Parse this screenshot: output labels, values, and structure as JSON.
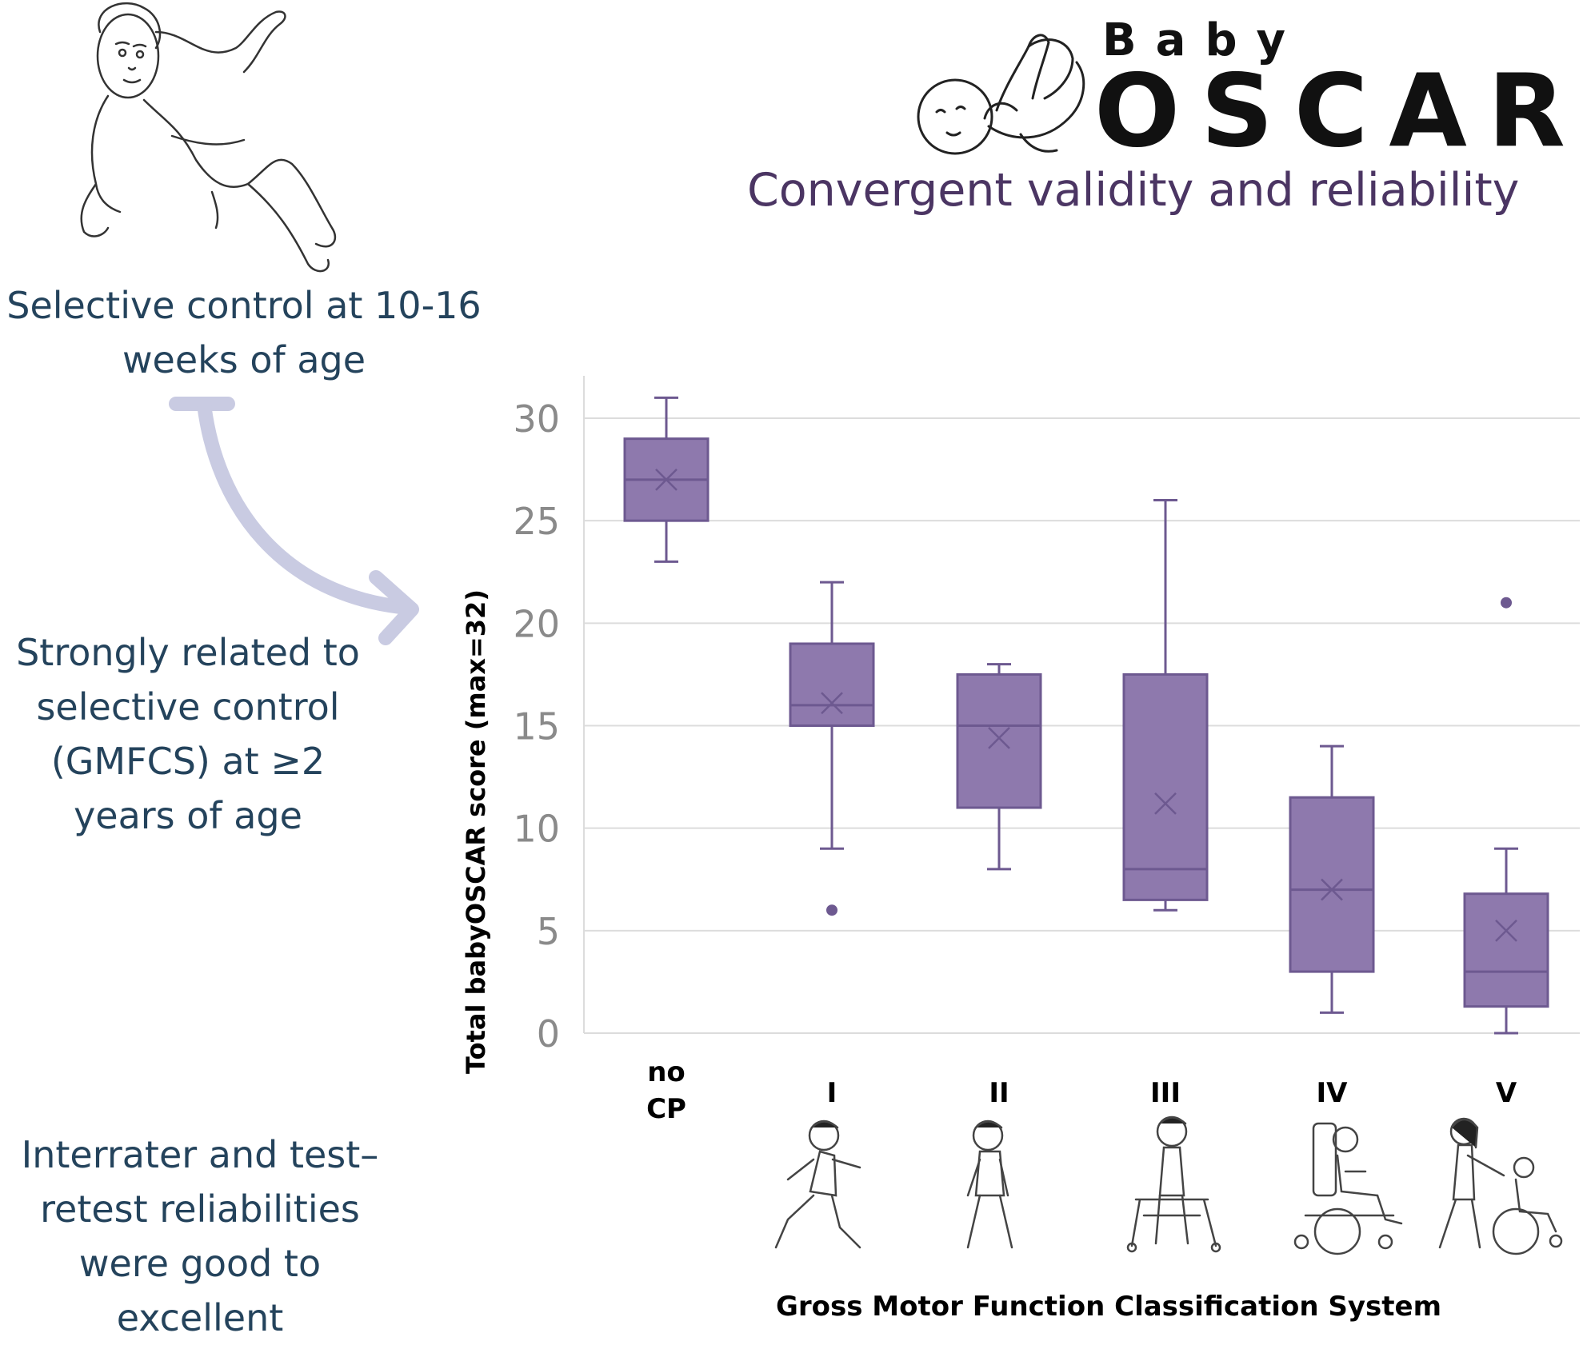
{
  "branding": {
    "logo_small": "Baby",
    "logo_big": "OSCAR",
    "subtitle": "Convergent validity and reliability"
  },
  "side_notes": {
    "top": "Selective control at 10-16\nweeks of age",
    "middle": "Strongly related to\nselective control\n(GMFCS) at ≥2\nyears of age",
    "bottom": "Interrater and test–\nretest reliabilities\nwere good to\nexcellent"
  },
  "icons": [
    "infant-sketch-icon",
    "baby-logo-icon",
    "curved-double-arrow-icon",
    "child-walking-icon",
    "child-walking-icon-2",
    "child-walker-icon",
    "child-power-wheelchair-icon",
    "child-pushed-wheelchair-icon"
  ],
  "colors": {
    "box_fill": "#8e79ad",
    "box_stroke": "#6d5990",
    "text_dark": "#24435c",
    "subtitle": "#4b3563",
    "arrow": "#c9cbe2",
    "tick": "#8a8a8a",
    "grid": "#dcdcdc"
  },
  "chart_data": {
    "type": "box",
    "ylabel": "Total babyOSCAR score (max=32)",
    "xlabel": "Gross Motor Function Classification System",
    "ylim": [
      0,
      32
    ],
    "yticks": [
      "0",
      "5",
      "10",
      "15",
      "20",
      "25",
      "30"
    ],
    "grid": true,
    "categories": [
      {
        "label": "no\nCP",
        "min": 23,
        "q1": 25,
        "median": 27,
        "q3": 29,
        "max": 31,
        "mean": 27,
        "outliers": []
      },
      {
        "label": "I",
        "min": 9,
        "q1": 15,
        "median": 16,
        "q3": 19,
        "max": 22,
        "mean": 16.1,
        "outliers": [
          6
        ]
      },
      {
        "label": "II",
        "min": 8,
        "q1": 11,
        "median": 15,
        "q3": 17.5,
        "max": 18,
        "mean": 14.4,
        "outliers": []
      },
      {
        "label": "III",
        "min": 6,
        "q1": 6.5,
        "median": 8,
        "q3": 17.5,
        "max": 26,
        "mean": 11.2,
        "outliers": []
      },
      {
        "label": "IV",
        "min": 1,
        "q1": 3,
        "median": 7,
        "q3": 11.5,
        "max": 14,
        "mean": 7,
        "outliers": []
      },
      {
        "label": "V",
        "min": 0,
        "q1": 1.3,
        "median": 3,
        "q3": 6.8,
        "max": 9,
        "mean": 5,
        "outliers": [
          21
        ]
      }
    ]
  }
}
